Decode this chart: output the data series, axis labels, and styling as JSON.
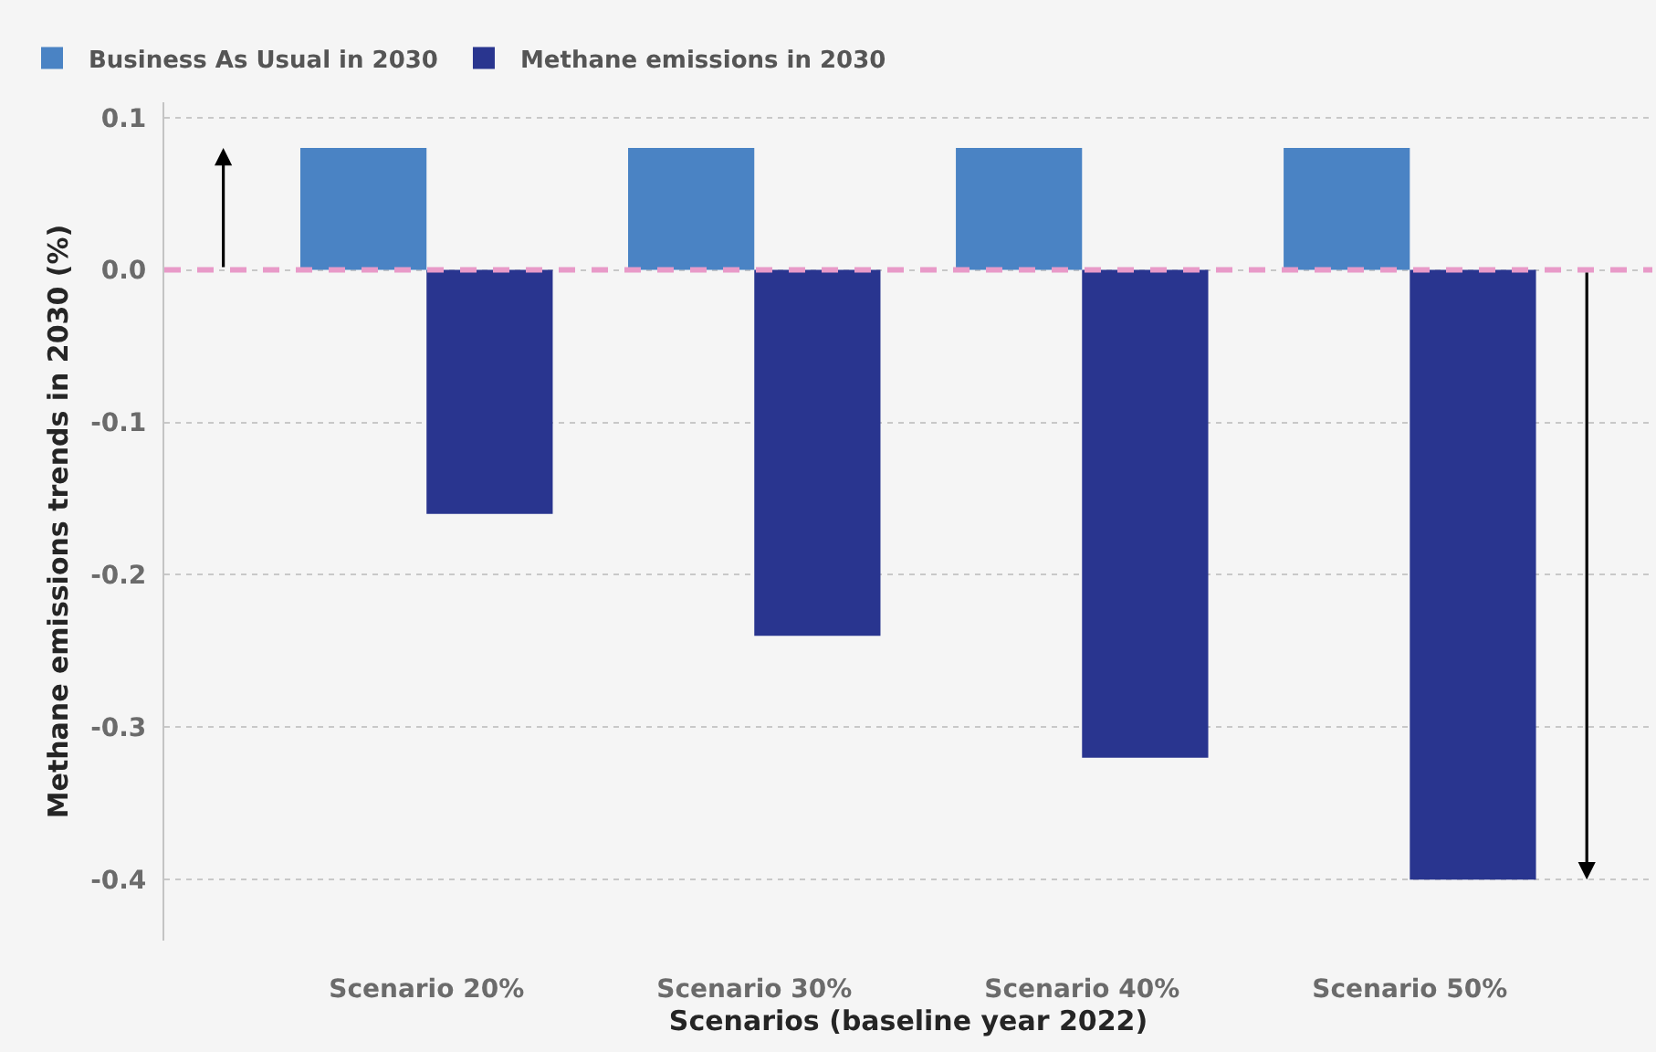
{
  "chart_data": {
    "type": "bar",
    "categories": [
      "Scenario 20%",
      "Scenario 30%",
      "Scenario 40%",
      "Scenario 50%"
    ],
    "xlabel": "Scenarios (baseline year 2022)",
    "ylabel": "Methane emissions trends in 2030 (%)",
    "series": [
      {
        "name": "Business As Usual in 2030",
        "color": "#4a83c4",
        "values": [
          0.08,
          0.08,
          0.08,
          0.08
        ]
      },
      {
        "name": "Methane emissions in 2030",
        "color": "#29358f",
        "values": [
          -0.16,
          -0.24,
          -0.32,
          -0.4
        ]
      }
    ],
    "ylim": [
      -0.44,
      0.11
    ],
    "yticks": [
      0.1,
      {
        "value": 0,
        "label": "0.0"
      },
      -0.1,
      -0.2,
      -0.3,
      -0.4
    ],
    "grid": "y",
    "legend": "top left",
    "ref_lines": [
      {
        "axis": "y",
        "value": 0,
        "color": "#e89ac8",
        "line_style": "dashed"
      }
    ]
  }
}
